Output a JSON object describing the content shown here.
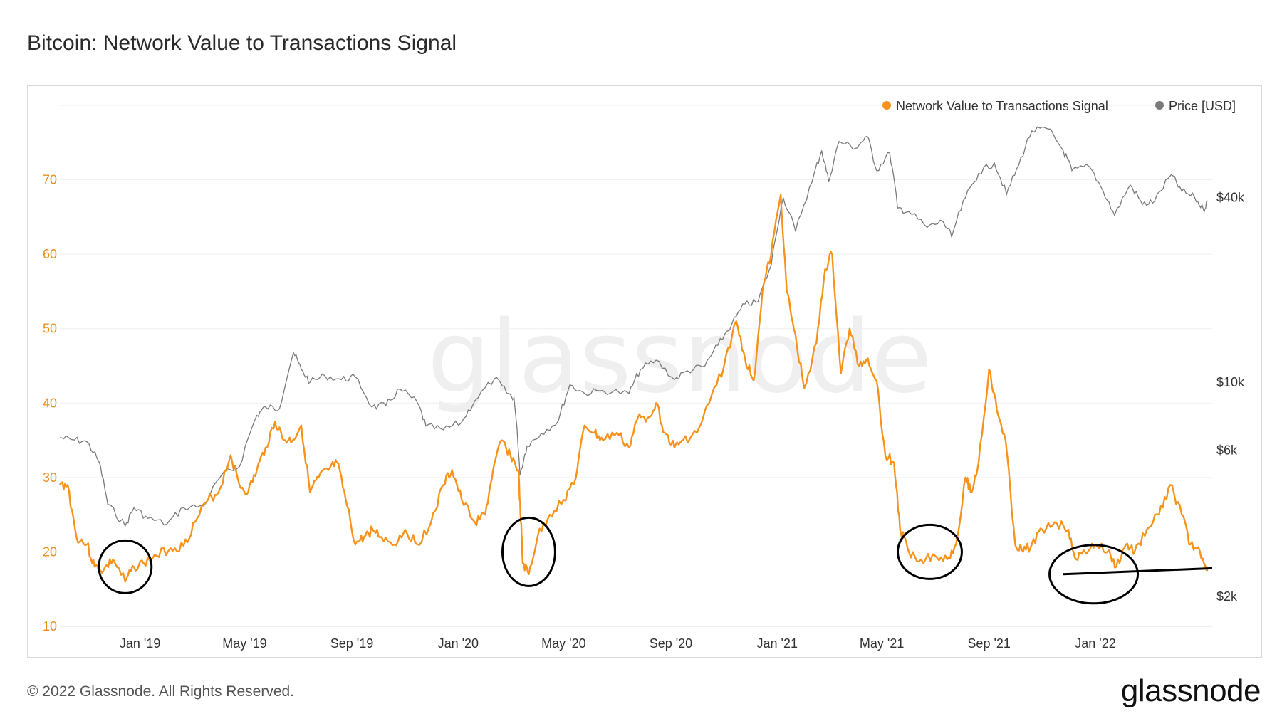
{
  "title": "Bitcoin: Network Value to Transactions Signal",
  "footer": "© 2022 Glassnode. All Rights Reserved.",
  "brand": "glassnode",
  "watermark": "glassnode",
  "chart_data": {
    "type": "line",
    "x_axis": {
      "range": [
        "2018-10-01",
        "2022-05-15"
      ],
      "ticks": [
        "Jan '19",
        "May '19",
        "Sep '19",
        "Jan '20",
        "May '20",
        "Sep '20",
        "Jan '21",
        "May '21",
        "Sep '21",
        "Jan '22"
      ]
    },
    "y_left": {
      "range": [
        10,
        80
      ],
      "ticks": [
        "10",
        "20",
        "30",
        "40",
        "50",
        "60",
        "70"
      ],
      "color": "#f7931a"
    },
    "y_right": {
      "scale": "log",
      "ticks": [
        "$2k",
        "$6k",
        "$10k",
        "$40k"
      ]
    },
    "legend": {
      "placement": "top-right"
    },
    "grid": true,
    "series": [
      {
        "name": "Network Value to Transactions Signal",
        "axis": "left",
        "color": "#f7931a",
        "points": [
          [
            "2018-10-01",
            29
          ],
          [
            "2018-10-10",
            29
          ],
          [
            "2018-10-20",
            22
          ],
          [
            "2018-11-01",
            21
          ],
          [
            "2018-11-10",
            18
          ],
          [
            "2018-11-20",
            17.5
          ],
          [
            "2018-12-01",
            19
          ],
          [
            "2018-12-15",
            16
          ],
          [
            "2018-12-25",
            18
          ],
          [
            "2019-01-05",
            18.5
          ],
          [
            "2019-01-20",
            19.5
          ],
          [
            "2019-02-05",
            20.5
          ],
          [
            "2019-02-20",
            20.8
          ],
          [
            "2019-03-05",
            24
          ],
          [
            "2019-03-20",
            27
          ],
          [
            "2019-04-01",
            28
          ],
          [
            "2019-04-15",
            33
          ],
          [
            "2019-04-25",
            29
          ],
          [
            "2019-05-05",
            28
          ],
          [
            "2019-05-15",
            31
          ],
          [
            "2019-05-25",
            34
          ],
          [
            "2019-06-05",
            37.5
          ],
          [
            "2019-06-15",
            35
          ],
          [
            "2019-06-25",
            35
          ],
          [
            "2019-07-05",
            37
          ],
          [
            "2019-07-15",
            28
          ],
          [
            "2019-07-25",
            30
          ],
          [
            "2019-08-05",
            31
          ],
          [
            "2019-08-15",
            32
          ],
          [
            "2019-08-25",
            27
          ],
          [
            "2019-09-05",
            21
          ],
          [
            "2019-09-15",
            22
          ],
          [
            "2019-09-25",
            23
          ],
          [
            "2019-10-05",
            22
          ],
          [
            "2019-10-20",
            21
          ],
          [
            "2019-11-01",
            23
          ],
          [
            "2019-11-15",
            21
          ],
          [
            "2019-12-01",
            24
          ],
          [
            "2019-12-15",
            29
          ],
          [
            "2019-12-25",
            31
          ],
          [
            "2020-01-05",
            27
          ],
          [
            "2020-01-20",
            24
          ],
          [
            "2020-02-01",
            25
          ],
          [
            "2020-02-10",
            31
          ],
          [
            "2020-02-20",
            35
          ],
          [
            "2020-03-01",
            33
          ],
          [
            "2020-03-10",
            31
          ],
          [
            "2020-03-13",
            24
          ],
          [
            "2020-03-15",
            18.5
          ],
          [
            "2020-03-22",
            17
          ],
          [
            "2020-04-01",
            22
          ],
          [
            "2020-04-15",
            25
          ],
          [
            "2020-05-01",
            27
          ],
          [
            "2020-05-15",
            30
          ],
          [
            "2020-05-25",
            37
          ],
          [
            "2020-06-05",
            36
          ],
          [
            "2020-06-15",
            35
          ],
          [
            "2020-07-01",
            36
          ],
          [
            "2020-07-15",
            34
          ],
          [
            "2020-07-25",
            38
          ],
          [
            "2020-08-05",
            38
          ],
          [
            "2020-08-15",
            40
          ],
          [
            "2020-08-25",
            36
          ],
          [
            "2020-09-05",
            34
          ],
          [
            "2020-09-15",
            35
          ],
          [
            "2020-10-01",
            36
          ],
          [
            "2020-10-15",
            40
          ],
          [
            "2020-11-01",
            45
          ],
          [
            "2020-11-15",
            51
          ],
          [
            "2020-11-25",
            46
          ],
          [
            "2020-12-05",
            43
          ],
          [
            "2020-12-15",
            55
          ],
          [
            "2020-12-25",
            60
          ],
          [
            "2021-01-05",
            68
          ],
          [
            "2021-01-12",
            55
          ],
          [
            "2021-01-20",
            50
          ],
          [
            "2021-02-01",
            42
          ],
          [
            "2021-02-15",
            48
          ],
          [
            "2021-02-25",
            58
          ],
          [
            "2021-03-05",
            60
          ],
          [
            "2021-03-15",
            44
          ],
          [
            "2021-03-25",
            50
          ],
          [
            "2021-04-05",
            45
          ],
          [
            "2021-04-15",
            46
          ],
          [
            "2021-04-25",
            43
          ],
          [
            "2021-05-05",
            33
          ],
          [
            "2021-05-15",
            32
          ],
          [
            "2021-05-22",
            23
          ],
          [
            "2021-06-01",
            20
          ],
          [
            "2021-06-15",
            19
          ],
          [
            "2021-07-01",
            19.5
          ],
          [
            "2021-07-15",
            19
          ],
          [
            "2021-07-25",
            21
          ],
          [
            "2021-08-05",
            30
          ],
          [
            "2021-08-12",
            28
          ],
          [
            "2021-08-20",
            32
          ],
          [
            "2021-09-01",
            44.5
          ],
          [
            "2021-09-10",
            39
          ],
          [
            "2021-09-20",
            35
          ],
          [
            "2021-10-01",
            21
          ],
          [
            "2021-10-10",
            20
          ],
          [
            "2021-10-20",
            21
          ],
          [
            "2021-11-01",
            23
          ],
          [
            "2021-11-15",
            24
          ],
          [
            "2021-12-01",
            23
          ],
          [
            "2021-12-10",
            19
          ],
          [
            "2021-12-20",
            20
          ],
          [
            "2022-01-01",
            21
          ],
          [
            "2022-01-15",
            20
          ],
          [
            "2022-01-25",
            18
          ],
          [
            "2022-02-05",
            21
          ],
          [
            "2022-02-15",
            20
          ],
          [
            "2022-03-01",
            23
          ],
          [
            "2022-03-15",
            25
          ],
          [
            "2022-03-28",
            29
          ],
          [
            "2022-04-10",
            25
          ],
          [
            "2022-04-20",
            21
          ],
          [
            "2022-05-01",
            20
          ],
          [
            "2022-05-10",
            17.5
          ]
        ]
      },
      {
        "name": "Price [USD]",
        "axis": "right",
        "color": "#7a7a7a",
        "points": [
          [
            "2018-10-01",
            6600
          ],
          [
            "2018-10-15",
            6500
          ],
          [
            "2018-11-01",
            6400
          ],
          [
            "2018-11-15",
            5500
          ],
          [
            "2018-11-25",
            4000
          ],
          [
            "2018-12-15",
            3400
          ],
          [
            "2018-12-25",
            3900
          ],
          [
            "2019-01-10",
            3600
          ],
          [
            "2019-02-01",
            3450
          ],
          [
            "2019-02-20",
            3900
          ],
          [
            "2019-03-15",
            3950
          ],
          [
            "2019-04-05",
            5000
          ],
          [
            "2019-04-25",
            5300
          ],
          [
            "2019-05-15",
            7800
          ],
          [
            "2019-05-25",
            8300
          ],
          [
            "2019-06-10",
            8200
          ],
          [
            "2019-06-26",
            12500
          ],
          [
            "2019-07-05",
            11000
          ],
          [
            "2019-07-15",
            10000
          ],
          [
            "2019-08-01",
            10500
          ],
          [
            "2019-08-20",
            10200
          ],
          [
            "2019-09-05",
            10400
          ],
          [
            "2019-09-24",
            8300
          ],
          [
            "2019-10-10",
            8400
          ],
          [
            "2019-10-26",
            9500
          ],
          [
            "2019-11-15",
            8600
          ],
          [
            "2019-11-25",
            7200
          ],
          [
            "2019-12-15",
            7000
          ],
          [
            "2020-01-05",
            7400
          ],
          [
            "2020-01-20",
            8700
          ],
          [
            "2020-02-12",
            10300
          ],
          [
            "2020-02-25",
            9300
          ],
          [
            "2020-03-05",
            8900
          ],
          [
            "2020-03-12",
            5000
          ],
          [
            "2020-03-20",
            6200
          ],
          [
            "2020-04-05",
            6800
          ],
          [
            "2020-04-25",
            7500
          ],
          [
            "2020-05-08",
            9800
          ],
          [
            "2020-05-25",
            9200
          ],
          [
            "2020-06-15",
            9400
          ],
          [
            "2020-07-15",
            9200
          ],
          [
            "2020-07-28",
            11000
          ],
          [
            "2020-08-15",
            11800
          ],
          [
            "2020-09-05",
            10200
          ],
          [
            "2020-09-20",
            10900
          ],
          [
            "2020-10-10",
            11300
          ],
          [
            "2020-10-25",
            13200
          ],
          [
            "2020-11-10",
            15500
          ],
          [
            "2020-11-25",
            18000
          ],
          [
            "2020-12-10",
            18300
          ],
          [
            "2020-12-25",
            24000
          ],
          [
            "2021-01-08",
            40000
          ],
          [
            "2021-01-22",
            31000
          ],
          [
            "2021-02-10",
            45000
          ],
          [
            "2021-02-21",
            57000
          ],
          [
            "2021-03-01",
            45000
          ],
          [
            "2021-03-13",
            61000
          ],
          [
            "2021-04-01",
            58000
          ],
          [
            "2021-04-14",
            63500
          ],
          [
            "2021-04-25",
            49000
          ],
          [
            "2021-05-10",
            56000
          ],
          [
            "2021-05-19",
            37000
          ],
          [
            "2021-06-01",
            36000
          ],
          [
            "2021-06-22",
            32000
          ],
          [
            "2021-07-10",
            33500
          ],
          [
            "2021-07-20",
            29800
          ],
          [
            "2021-08-05",
            40000
          ],
          [
            "2021-08-20",
            48000
          ],
          [
            "2021-09-07",
            52000
          ],
          [
            "2021-09-21",
            41000
          ],
          [
            "2021-10-05",
            51000
          ],
          [
            "2021-10-20",
            66000
          ],
          [
            "2021-11-08",
            67000
          ],
          [
            "2021-11-25",
            57000
          ],
          [
            "2021-12-05",
            49000
          ],
          [
            "2021-12-25",
            50500
          ],
          [
            "2022-01-10",
            42000
          ],
          [
            "2022-01-23",
            35000
          ],
          [
            "2022-02-10",
            44000
          ],
          [
            "2022-02-24",
            38000
          ],
          [
            "2022-03-10",
            39000
          ],
          [
            "2022-03-29",
            47500
          ],
          [
            "2022-04-10",
            42000
          ],
          [
            "2022-04-25",
            40000
          ],
          [
            "2022-05-05",
            36500
          ],
          [
            "2022-05-10",
            39000
          ]
        ]
      }
    ],
    "annotations": [
      {
        "type": "circle",
        "x": "2018-12-15",
        "y": 18
      },
      {
        "type": "circle",
        "x": "2020-03-22",
        "y": 20
      },
      {
        "type": "circle",
        "x": "2021-06-25",
        "y": 20
      },
      {
        "type": "circle",
        "x": "2021-12-30",
        "y": 17
      },
      {
        "type": "line",
        "from": [
          "2021-11-25",
          17
        ],
        "to": [
          "2022-05-15",
          17.8
        ]
      }
    ]
  }
}
